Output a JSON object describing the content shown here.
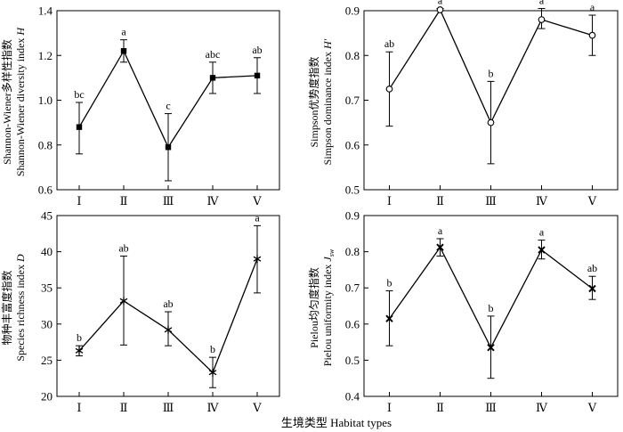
{
  "figure": {
    "xlabel": "生境类型 Habitat types"
  },
  "chart_data": [
    {
      "type": "line",
      "categories": [
        "Ⅰ",
        "Ⅱ",
        "Ⅲ",
        "Ⅳ",
        "Ⅴ"
      ],
      "ylabel_cn": "Shannon-Wiener多样性指数",
      "ylabel_en": "Shannon-Wiener diversity index ",
      "ylabel_sym": "H",
      "ylim": [
        0.6,
        1.4
      ],
      "yticks": [
        "0.6",
        "0.8",
        "1.0",
        "1.2",
        "1.4"
      ],
      "values": [
        0.88,
        1.22,
        0.79,
        1.1,
        1.11
      ],
      "err_low": [
        0.76,
        1.17,
        0.64,
        1.03,
        1.03
      ],
      "err_high": [
        0.99,
        1.27,
        0.94,
        1.17,
        1.19
      ],
      "letters": [
        "bc",
        "a",
        "c",
        "abc",
        "ab"
      ],
      "marker": "square-filled"
    },
    {
      "type": "line",
      "categories": [
        "Ⅰ",
        "Ⅱ",
        "Ⅲ",
        "Ⅳ",
        "Ⅴ"
      ],
      "ylabel_cn": "Simpson优势度指数",
      "ylabel_en": "Simpson dominance index ",
      "ylabel_sym": "H′",
      "ylim": [
        0.5,
        0.9
      ],
      "yticks": [
        "0.5",
        "0.6",
        "0.7",
        "0.8",
        "0.9"
      ],
      "values": [
        0.725,
        0.902,
        0.65,
        0.88,
        0.845
      ],
      "err_low": [
        0.642,
        0.9,
        0.558,
        0.86,
        0.8
      ],
      "err_high": [
        0.808,
        0.905,
        0.742,
        0.905,
        0.89
      ],
      "letters": [
        "ab",
        "a",
        "b",
        "a",
        "a"
      ],
      "marker": "circle-open"
    },
    {
      "type": "line",
      "categories": [
        "Ⅰ",
        "Ⅱ",
        "Ⅲ",
        "Ⅳ",
        "Ⅴ"
      ],
      "ylabel_cn": "物种丰富度指数",
      "ylabel_en": "Species richness index ",
      "ylabel_sym": "D",
      "ylim": [
        20,
        45
      ],
      "yticks": [
        "20",
        "25",
        "30",
        "35",
        "40",
        "45"
      ],
      "values": [
        26.3,
        33.2,
        29.2,
        23.3,
        39.0
      ],
      "err_low": [
        25.6,
        27.1,
        27.0,
        21.2,
        34.3
      ],
      "err_high": [
        27.0,
        39.4,
        31.7,
        25.4,
        43.6
      ],
      "letters": [
        "b",
        "ab",
        "ab",
        "b",
        "a"
      ],
      "marker": "star"
    },
    {
      "type": "line",
      "categories": [
        "Ⅰ",
        "Ⅱ",
        "Ⅲ",
        "Ⅳ",
        "Ⅴ"
      ],
      "ylabel_cn": "Pielou均匀度指数",
      "ylabel_en": "Pielou uniformity index ",
      "ylabel_sym": "J",
      "ylabel_sub": "sw",
      "ylim": [
        0.4,
        0.9
      ],
      "yticks": [
        "0.4",
        "0.5",
        "0.6",
        "0.7",
        "0.8",
        "0.9"
      ],
      "values": [
        0.615,
        0.812,
        0.535,
        0.805,
        0.698
      ],
      "err_low": [
        0.54,
        0.788,
        0.45,
        0.78,
        0.668
      ],
      "err_high": [
        0.692,
        0.836,
        0.622,
        0.832,
        0.732
      ],
      "letters": [
        "b",
        "a",
        "b",
        "a",
        "ab"
      ],
      "marker": "x"
    }
  ]
}
